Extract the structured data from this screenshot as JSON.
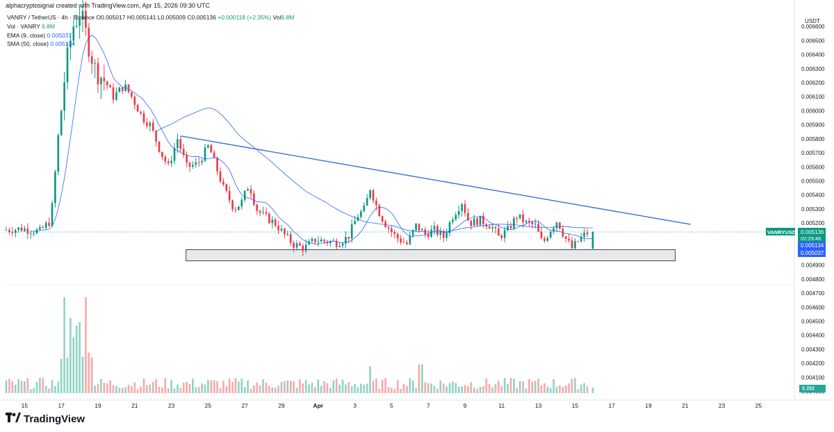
{
  "header": {
    "attribution": "alphacryptosignal created with TradingView.com, Apr 15, 2026 09:30 UTC"
  },
  "legend": {
    "symbol": "VANRY / TetherUS · 4h · Binance",
    "ohlc_o": "O0.005017",
    "ohlc_h": "H0.005141",
    "ohlc_l": "L0.005009",
    "ohlc_c": "C0.005136",
    "change": "+0.000118 (+2.35%)",
    "vol_label": "Vol",
    "vol_value": "6.8M",
    "vol_row_label": "Vol · VANRY",
    "vol_row_value": "6.8M",
    "ema_label": "EMA (9, close)",
    "ema_value": "0.005037",
    "sma_label": "SMA (50, close)",
    "sma_value": "0.005134"
  },
  "price_scale": {
    "currency": "USDT",
    "ticks": [
      "0.006600",
      "0.006500",
      "0.006400",
      "0.006300",
      "0.006200",
      "0.006100",
      "0.006000",
      "0.005900",
      "0.005800",
      "0.005700",
      "0.005600",
      "0.005500",
      "0.005400",
      "0.005300",
      "0.005200",
      "0.004900",
      "0.004800",
      "0.004700",
      "0.004600",
      "0.004500",
      "0.004400",
      "0.004300",
      "0.004200",
      "0.004100",
      "0.004000"
    ],
    "symbol_tag": "VANRYUSDT",
    "last_price": "0.005136",
    "countdown": "02:29:48",
    "sma_tag": "0.005134",
    "ema_tag": "0.005037",
    "volume_tag": "6.8M"
  },
  "time_scale": {
    "ticks": [
      "15",
      "17",
      "19",
      "21",
      "23",
      "25",
      "27",
      "29",
      "Apr",
      "3",
      "5",
      "7",
      "9",
      "11",
      "13",
      "15",
      "17",
      "19",
      "21",
      "23",
      "25"
    ]
  },
  "footer": {
    "brand": "TradingView"
  },
  "chart_data": {
    "type": "candlestick",
    "symbol": "VANRY / TetherUS",
    "timeframe": "4h",
    "exchange": "Binance",
    "x_range": [
      "Mar 14",
      "Apr 26"
    ],
    "ylim": [
      0.00476,
      0.00669
    ],
    "colors": {
      "up": "#089981",
      "down": "#f23645",
      "ema": "#2962ff",
      "sma": "#2962ff",
      "trendline": "#3a6fd8",
      "support_zone": "#e0e3eb"
    },
    "last_candle": {
      "open": 0.005017,
      "high": 0.005141,
      "low": 0.005009,
      "close": 0.005136,
      "change": 0.000118,
      "change_pct": 2.35,
      "volume": "6.8M"
    },
    "ema_9": 0.005037,
    "sma_50": 0.005134,
    "descending_trendline": {
      "from": {
        "date": "Mar 23",
        "price": 0.00582
      },
      "to": {
        "date": "Apr 20",
        "price": 0.00519
      }
    },
    "support_zone": {
      "from_date": "Mar 24",
      "to_date": "Apr 20",
      "price_low": 0.00493,
      "price_high": 0.00501
    },
    "volume_peaks": [
      {
        "date": "Mar 17",
        "label": "spike"
      },
      {
        "date": "Mar 18",
        "label": "spike"
      }
    ],
    "price_path": [
      [
        14.0,
        0.00515
      ],
      [
        15.0,
        0.00516
      ],
      [
        16.0,
        0.00514
      ],
      [
        16.6,
        0.00522
      ],
      [
        17.0,
        0.0058
      ],
      [
        17.4,
        0.0063
      ],
      [
        17.8,
        0.0066
      ],
      [
        18.2,
        0.0067
      ],
      [
        18.6,
        0.0065
      ],
      [
        19.0,
        0.0063
      ],
      [
        19.6,
        0.0062
      ],
      [
        20.0,
        0.0061
      ],
      [
        20.6,
        0.00618
      ],
      [
        21.0,
        0.0061
      ],
      [
        21.6,
        0.00595
      ],
      [
        22.0,
        0.0059
      ],
      [
        22.6,
        0.0057
      ],
      [
        23.0,
        0.0056
      ],
      [
        23.5,
        0.0058
      ],
      [
        24.0,
        0.0056
      ],
      [
        24.6,
        0.00562
      ],
      [
        25.2,
        0.00575
      ],
      [
        25.6,
        0.0056
      ],
      [
        26.0,
        0.00545
      ],
      [
        26.6,
        0.0053
      ],
      [
        27.0,
        0.00535
      ],
      [
        27.4,
        0.00548
      ],
      [
        27.8,
        0.0053
      ],
      [
        28.2,
        0.00525
      ],
      [
        28.8,
        0.0052
      ],
      [
        29.3,
        0.00512
      ],
      [
        29.8,
        0.00505
      ],
      [
        30.4,
        0.00502
      ],
      [
        31.0,
        0.00508
      ],
      [
        31.6,
        0.00507
      ],
      [
        32.2,
        0.00506
      ],
      [
        32.8,
        0.0051
      ],
      [
        33.3,
        0.00525
      ],
      [
        33.7,
        0.0053
      ],
      [
        34.0,
        0.00545
      ],
      [
        34.4,
        0.0053
      ],
      [
        34.8,
        0.0052
      ],
      [
        35.4,
        0.0051
      ],
      [
        36.0,
        0.00505
      ],
      [
        36.5,
        0.00518
      ],
      [
        37.0,
        0.00512
      ],
      [
        37.5,
        0.00515
      ],
      [
        38.0,
        0.0051
      ],
      [
        38.5,
        0.00525
      ],
      [
        39.0,
        0.00535
      ],
      [
        39.4,
        0.0052
      ],
      [
        40.0,
        0.00522
      ],
      [
        40.6,
        0.00518
      ],
      [
        41.0,
        0.0051
      ],
      [
        41.5,
        0.00515
      ],
      [
        42.0,
        0.00525
      ],
      [
        42.5,
        0.0052
      ],
      [
        43.0,
        0.00518
      ],
      [
        43.4,
        0.00505
      ],
      [
        43.8,
        0.00515
      ],
      [
        44.2,
        0.00522
      ],
      [
        44.6,
        0.0051
      ],
      [
        45.0,
        0.00502
      ],
      [
        45.4,
        0.00508
      ],
      [
        45.8,
        0.00513
      ]
    ]
  }
}
